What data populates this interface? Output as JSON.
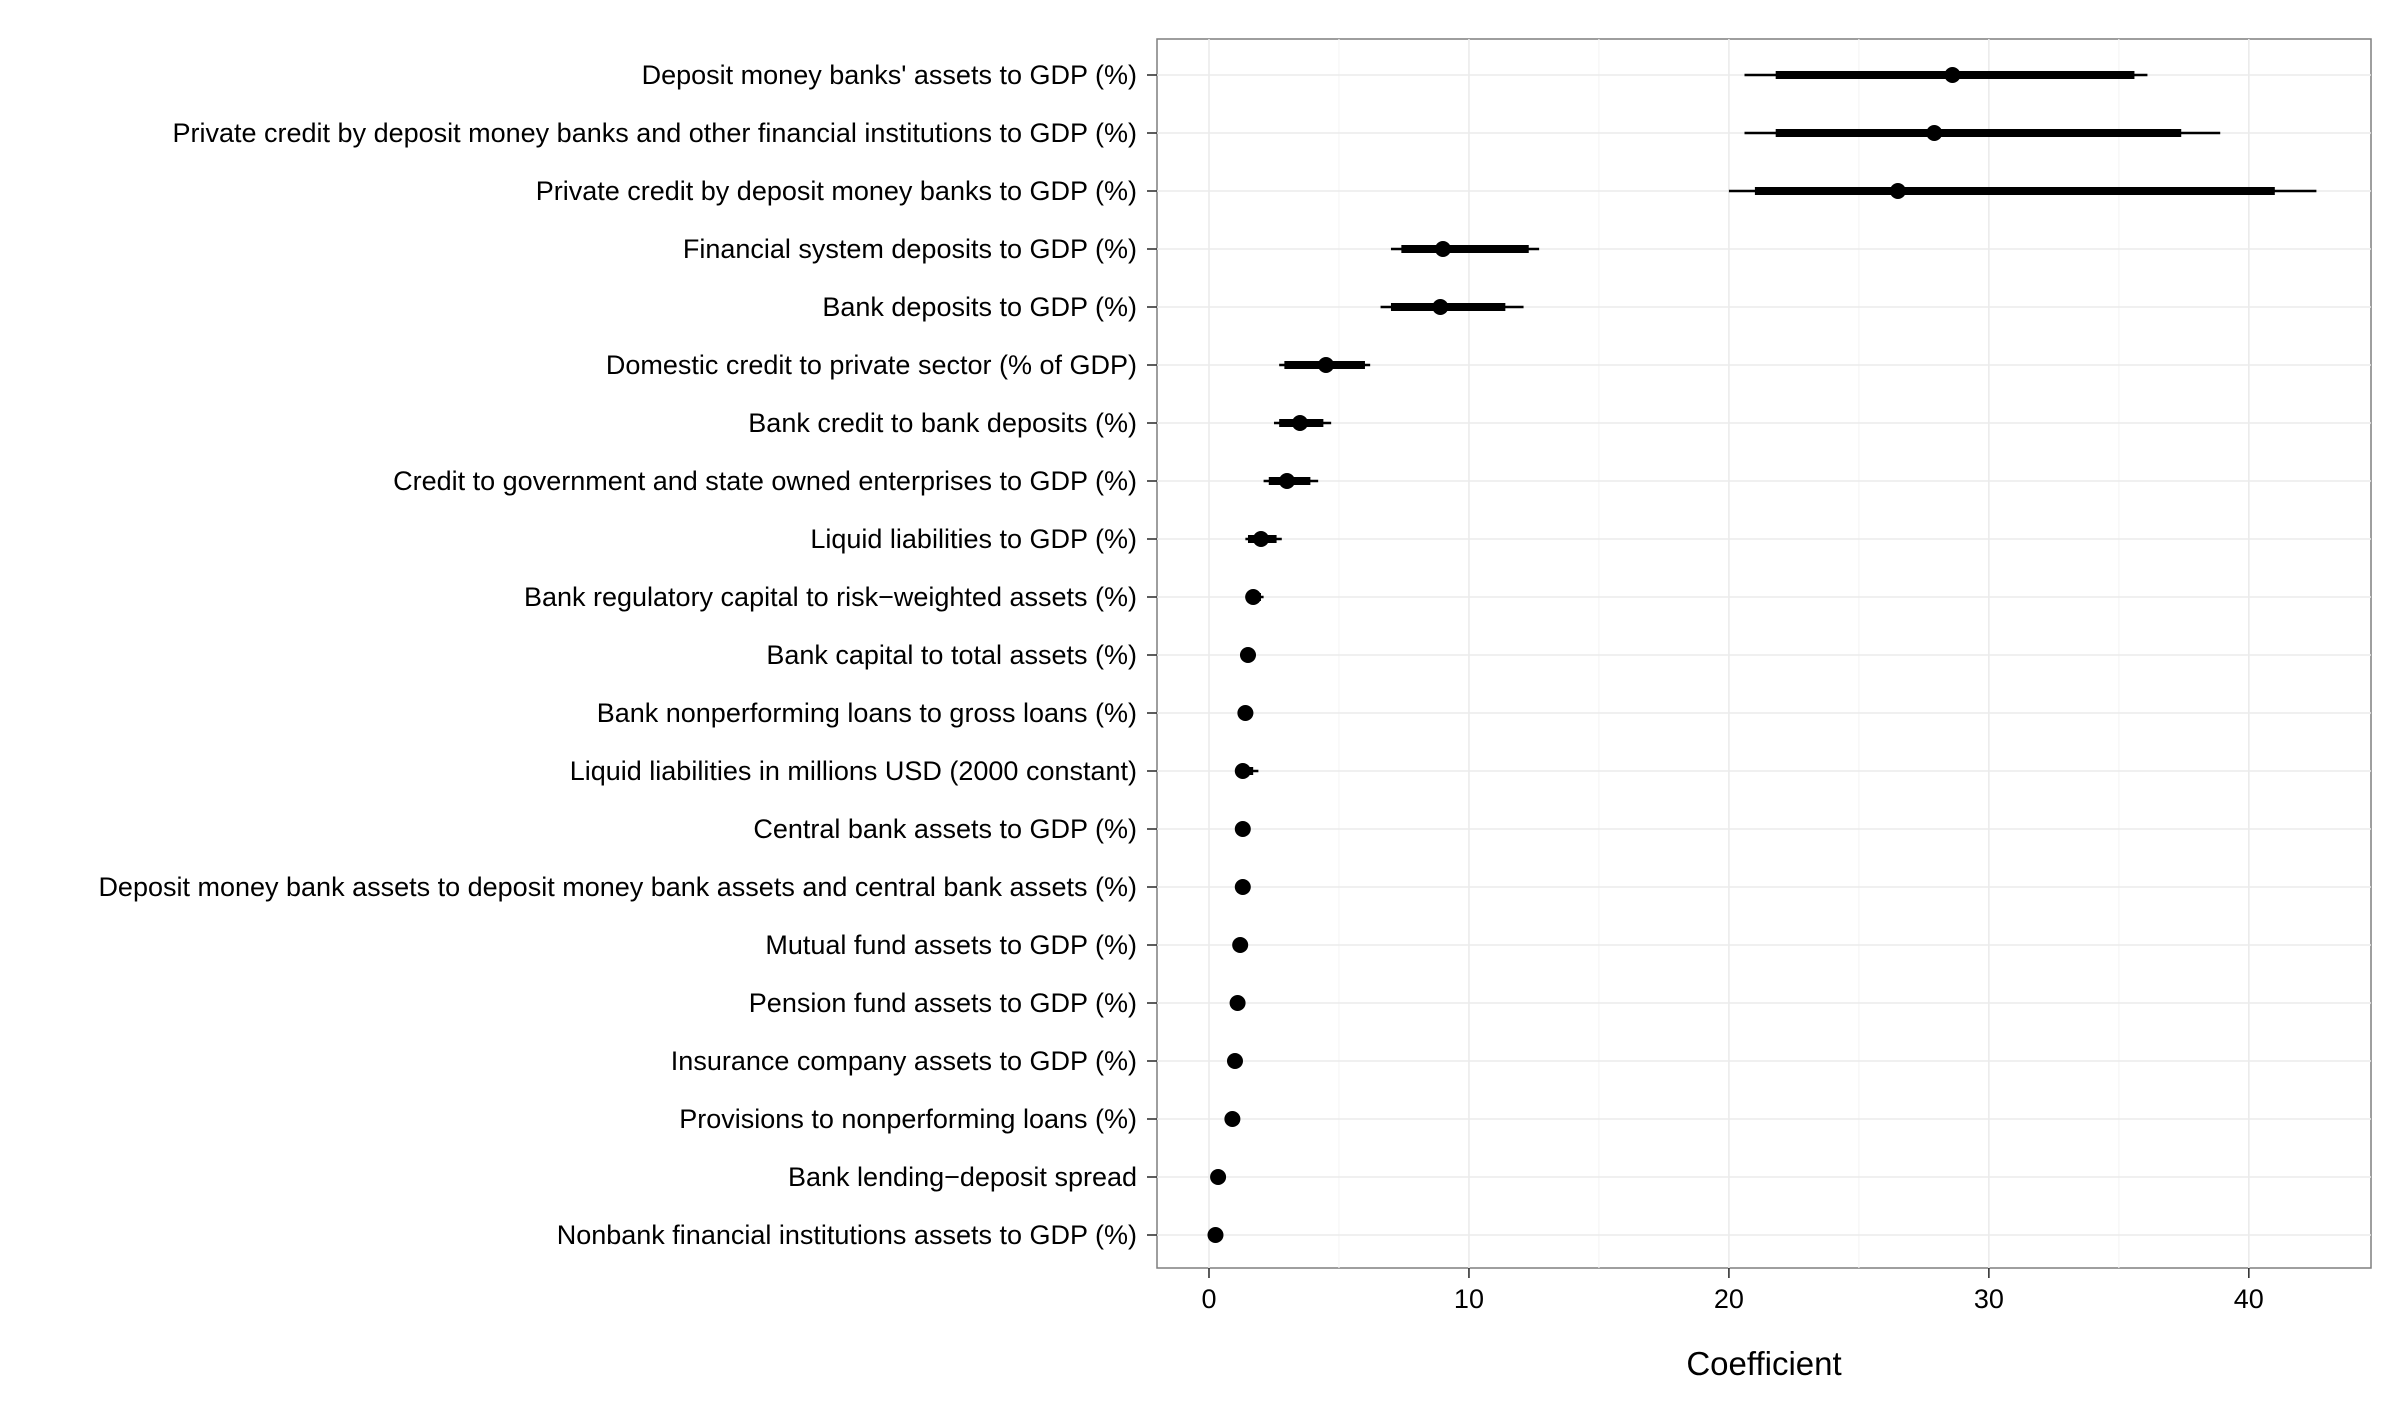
{
  "chart_data": {
    "type": "scatter",
    "subtype": "coefficient-plot",
    "title": "",
    "xlabel": "Coefficient",
    "ylabel": "",
    "xlim": [
      -2.0,
      44.7
    ],
    "xticks": [
      0,
      10,
      20,
      30,
      40
    ],
    "grid": true,
    "legend": "none",
    "colors": {
      "mark": "#000000",
      "grid": "#ebebeb",
      "panel_border": "#7f7f7f"
    },
    "rows": [
      {
        "label": "Deposit money banks' assets to GDP (%)",
        "estimate": 28.6,
        "inner": [
          21.8,
          35.6
        ],
        "outer": [
          20.6,
          36.1
        ]
      },
      {
        "label": "Private credit by deposit money banks and other financial institutions to GDP (%)",
        "estimate": 27.9,
        "inner": [
          21.8,
          37.4
        ],
        "outer": [
          20.6,
          38.9
        ]
      },
      {
        "label": "Private credit by deposit money banks to GDP (%)",
        "estimate": 26.5,
        "inner": [
          21.0,
          41.0
        ],
        "outer": [
          20.0,
          42.6
        ]
      },
      {
        "label": "Financial system deposits to GDP (%)",
        "estimate": 9.0,
        "inner": [
          7.4,
          12.3
        ],
        "outer": [
          7.0,
          12.7
        ]
      },
      {
        "label": "Bank deposits to GDP (%)",
        "estimate": 8.9,
        "inner": [
          7.0,
          11.4
        ],
        "outer": [
          6.6,
          12.1
        ]
      },
      {
        "label": "Domestic credit to private sector (% of GDP)",
        "estimate": 4.5,
        "inner": [
          2.9,
          6.0
        ],
        "outer": [
          2.7,
          6.2
        ]
      },
      {
        "label": "Bank credit to bank deposits (%)",
        "estimate": 3.5,
        "inner": [
          2.7,
          4.4
        ],
        "outer": [
          2.5,
          4.7
        ]
      },
      {
        "label": "Credit to government and state owned enterprises to GDP (%)",
        "estimate": 3.0,
        "inner": [
          2.3,
          3.9
        ],
        "outer": [
          2.1,
          4.2
        ]
      },
      {
        "label": "Liquid liabilities to GDP (%)",
        "estimate": 2.0,
        "inner": [
          1.5,
          2.6
        ],
        "outer": [
          1.4,
          2.8
        ]
      },
      {
        "label": "Bank regulatory capital to risk−weighted assets (%)",
        "estimate": 1.7,
        "inner": [
          1.5,
          2.0
        ],
        "outer": [
          1.4,
          2.1
        ]
      },
      {
        "label": "Bank capital to total assets (%)",
        "estimate": 1.5,
        "inner": [
          1.3,
          1.7
        ],
        "outer": [
          1.2,
          1.8
        ]
      },
      {
        "label": "Bank nonperforming loans to gross loans (%)",
        "estimate": 1.4,
        "inner": [
          1.2,
          1.6
        ],
        "outer": [
          1.1,
          1.7
        ]
      },
      {
        "label": "Liquid liabilities in millions USD (2000 constant)",
        "estimate": 1.3,
        "inner": [
          1.1,
          1.7
        ],
        "outer": [
          1.0,
          1.9
        ]
      },
      {
        "label": "Central bank assets to GDP (%)",
        "estimate": 1.3,
        "inner": [
          1.2,
          1.4
        ],
        "outer": [
          1.1,
          1.5
        ]
      },
      {
        "label": "Deposit money bank assets to deposit money bank assets and central bank assets (%)",
        "estimate": 1.3,
        "inner": [
          1.2,
          1.4
        ],
        "outer": [
          1.1,
          1.5
        ]
      },
      {
        "label": "Mutual fund assets to GDP (%)",
        "estimate": 1.2,
        "inner": [
          1.1,
          1.3
        ],
        "outer": [
          1.0,
          1.4
        ]
      },
      {
        "label": "Pension fund assets to GDP (%)",
        "estimate": 1.1,
        "inner": [
          1.0,
          1.2
        ],
        "outer": [
          0.9,
          1.3
        ]
      },
      {
        "label": "Insurance company assets to GDP (%)",
        "estimate": 1.0,
        "inner": [
          0.9,
          1.1
        ],
        "outer": [
          0.8,
          1.2
        ]
      },
      {
        "label": "Provisions to nonperforming loans (%)",
        "estimate": 0.9,
        "inner": [
          0.8,
          1.0
        ],
        "outer": [
          0.7,
          1.1
        ]
      },
      {
        "label": "Bank lending−deposit spread",
        "estimate": 0.35,
        "inner": [
          0.25,
          0.45
        ],
        "outer": [
          0.2,
          0.5
        ]
      },
      {
        "label": "Nonbank financial institutions assets to GDP (%)",
        "estimate": 0.25,
        "inner": [
          0.15,
          0.35
        ],
        "outer": [
          0.1,
          0.4
        ]
      }
    ]
  }
}
